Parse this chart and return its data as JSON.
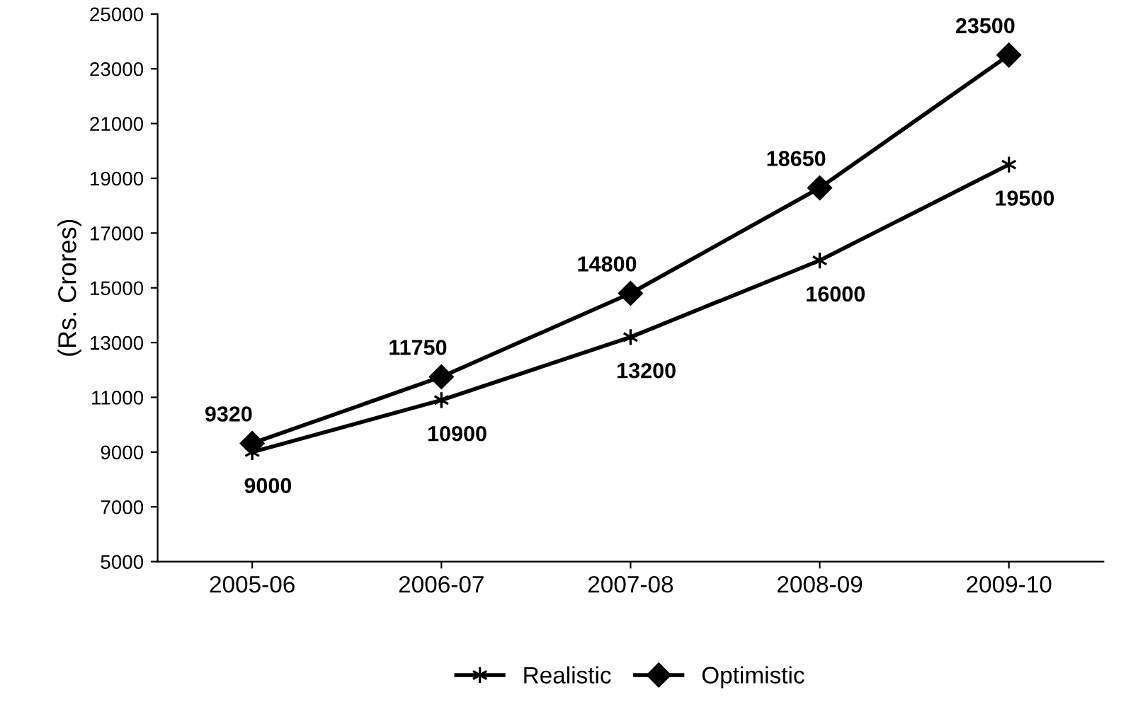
{
  "chart_data": {
    "type": "line",
    "ylabel": "(Rs. Crores)",
    "categories": [
      "2005-06",
      "2006-07",
      "2007-08",
      "2008-09",
      "2009-10"
    ],
    "series": [
      {
        "name": "Realistic",
        "color": "#000000",
        "marker": "cross",
        "values": [
          9000,
          10900,
          13200,
          16000,
          19500
        ]
      },
      {
        "name": "Optimistic",
        "color": "#000000",
        "marker": "diamond",
        "values": [
          9320,
          11750,
          14800,
          18650,
          23500
        ]
      }
    ],
    "ylim": [
      5000,
      25000
    ],
    "yticks": [
      5000,
      7000,
      9000,
      11000,
      13000,
      15000,
      17000,
      19000,
      21000,
      23000,
      25000
    ],
    "data_labels": true,
    "legend": "bottom",
    "grid": false
  }
}
